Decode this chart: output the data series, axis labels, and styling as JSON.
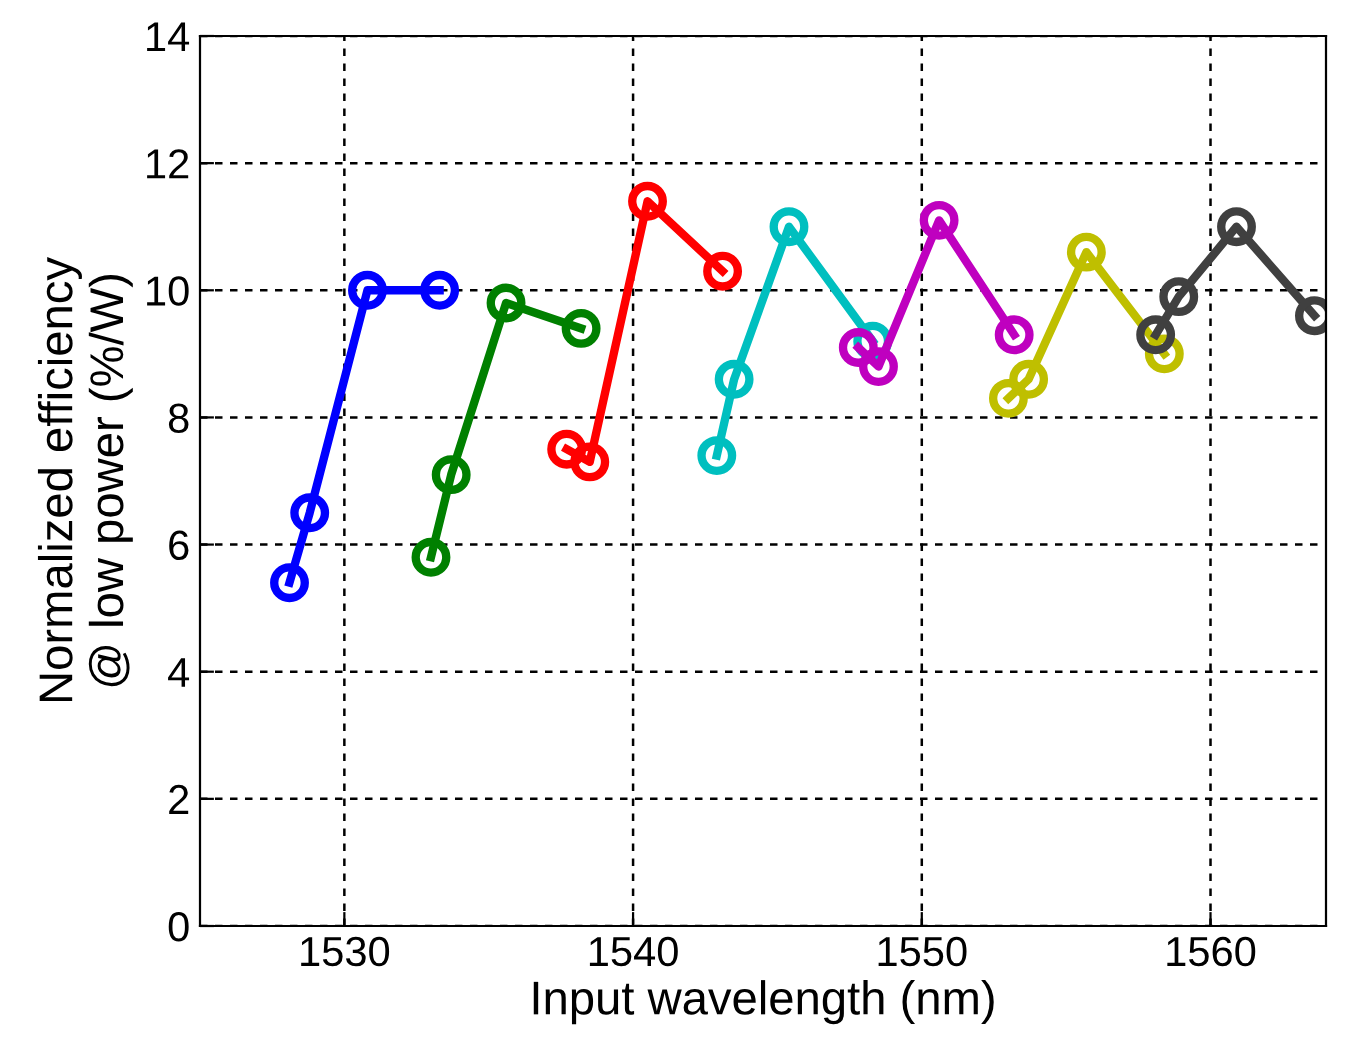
{
  "chart_data": {
    "type": "line",
    "xlabel": "Input wavelength (nm)",
    "ylabel": "Normalized efficiency\n@ low power (%/W)",
    "xlim": [
      1525,
      1564
    ],
    "xticks": [
      1530,
      1540,
      1550,
      1560
    ],
    "ylim": [
      0,
      14
    ],
    "yticks": [
      0,
      2,
      4,
      6,
      8,
      10,
      12,
      14
    ],
    "grid": true,
    "marker": "circle",
    "line_style": "solid",
    "series": [
      {
        "color": "#0000ff",
        "x": [
          1528.1,
          1528.8,
          1530.8,
          1533.3
        ],
        "values": [
          5.4,
          6.5,
          10.0,
          10.0
        ]
      },
      {
        "color": "#008000",
        "x": [
          1533.0,
          1533.7,
          1535.6,
          1538.2
        ],
        "values": [
          5.8,
          7.1,
          9.8,
          9.4
        ]
      },
      {
        "color": "#ff0000",
        "x": [
          1537.7,
          1538.5,
          1540.5,
          1543.1
        ],
        "values": [
          7.5,
          7.3,
          11.4,
          10.3
        ]
      },
      {
        "color": "#00bfbf",
        "x": [
          1542.9,
          1543.5,
          1545.4,
          1548.3
        ],
        "values": [
          7.4,
          8.6,
          11.0,
          9.2
        ]
      },
      {
        "color": "#bf00bf",
        "x": [
          1547.8,
          1548.5,
          1550.6,
          1553.2
        ],
        "values": [
          9.1,
          8.8,
          11.1,
          9.3
        ]
      },
      {
        "color": "#bfbf00",
        "x": [
          1553.0,
          1553.7,
          1555.7,
          1558.4
        ],
        "values": [
          8.3,
          8.6,
          10.6,
          9.0
        ]
      },
      {
        "color": "#404040",
        "x": [
          1558.1,
          1558.9,
          1560.9,
          1563.6
        ],
        "values": [
          9.3,
          9.9,
          11.0,
          9.6
        ]
      }
    ]
  }
}
